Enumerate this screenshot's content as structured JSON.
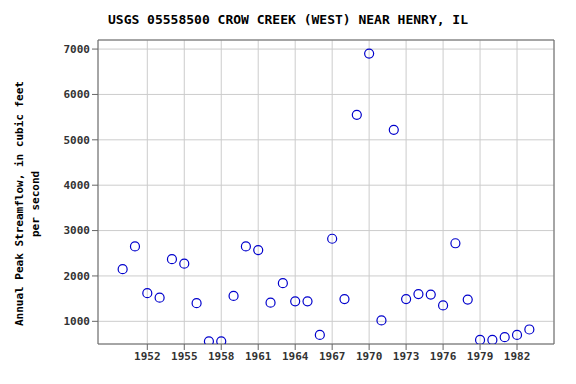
{
  "chart_data": {
    "type": "scatter",
    "title": "USGS 05558500 CROW CREEK (WEST) NEAR HENRY, IL",
    "ylabel": "Annual Peak Streamflow, in cubic feet\nper second",
    "x": [
      1950,
      1951,
      1952,
      1953,
      1954,
      1955,
      1956,
      1957,
      1958,
      1959,
      1960,
      1961,
      1962,
      1963,
      1964,
      1965,
      1966,
      1967,
      1968,
      1969,
      1970,
      1971,
      1972,
      1973,
      1974,
      1975,
      1976,
      1977,
      1978,
      1979,
      1980,
      1981,
      1982,
      1983
    ],
    "values": [
      2150,
      2650,
      1620,
      1520,
      2370,
      2270,
      1400,
      560,
      560,
      1560,
      2650,
      2570,
      1410,
      1840,
      1440,
      1440,
      700,
      2820,
      1490,
      5550,
      6900,
      1020,
      5220,
      1490,
      1600,
      1590,
      1350,
      2720,
      1480,
      590,
      590,
      650,
      700,
      820
    ],
    "color": "#0000cc",
    "marker": "circle",
    "xlim": [
      1948,
      1985
    ],
    "ylim": [
      500,
      7200
    ],
    "xticks": [
      1952,
      1955,
      1958,
      1961,
      1964,
      1967,
      1970,
      1973,
      1976,
      1979,
      1982
    ],
    "yticks": [
      1000,
      2000,
      3000,
      4000,
      5000,
      6000,
      7000
    ],
    "grid": true
  }
}
